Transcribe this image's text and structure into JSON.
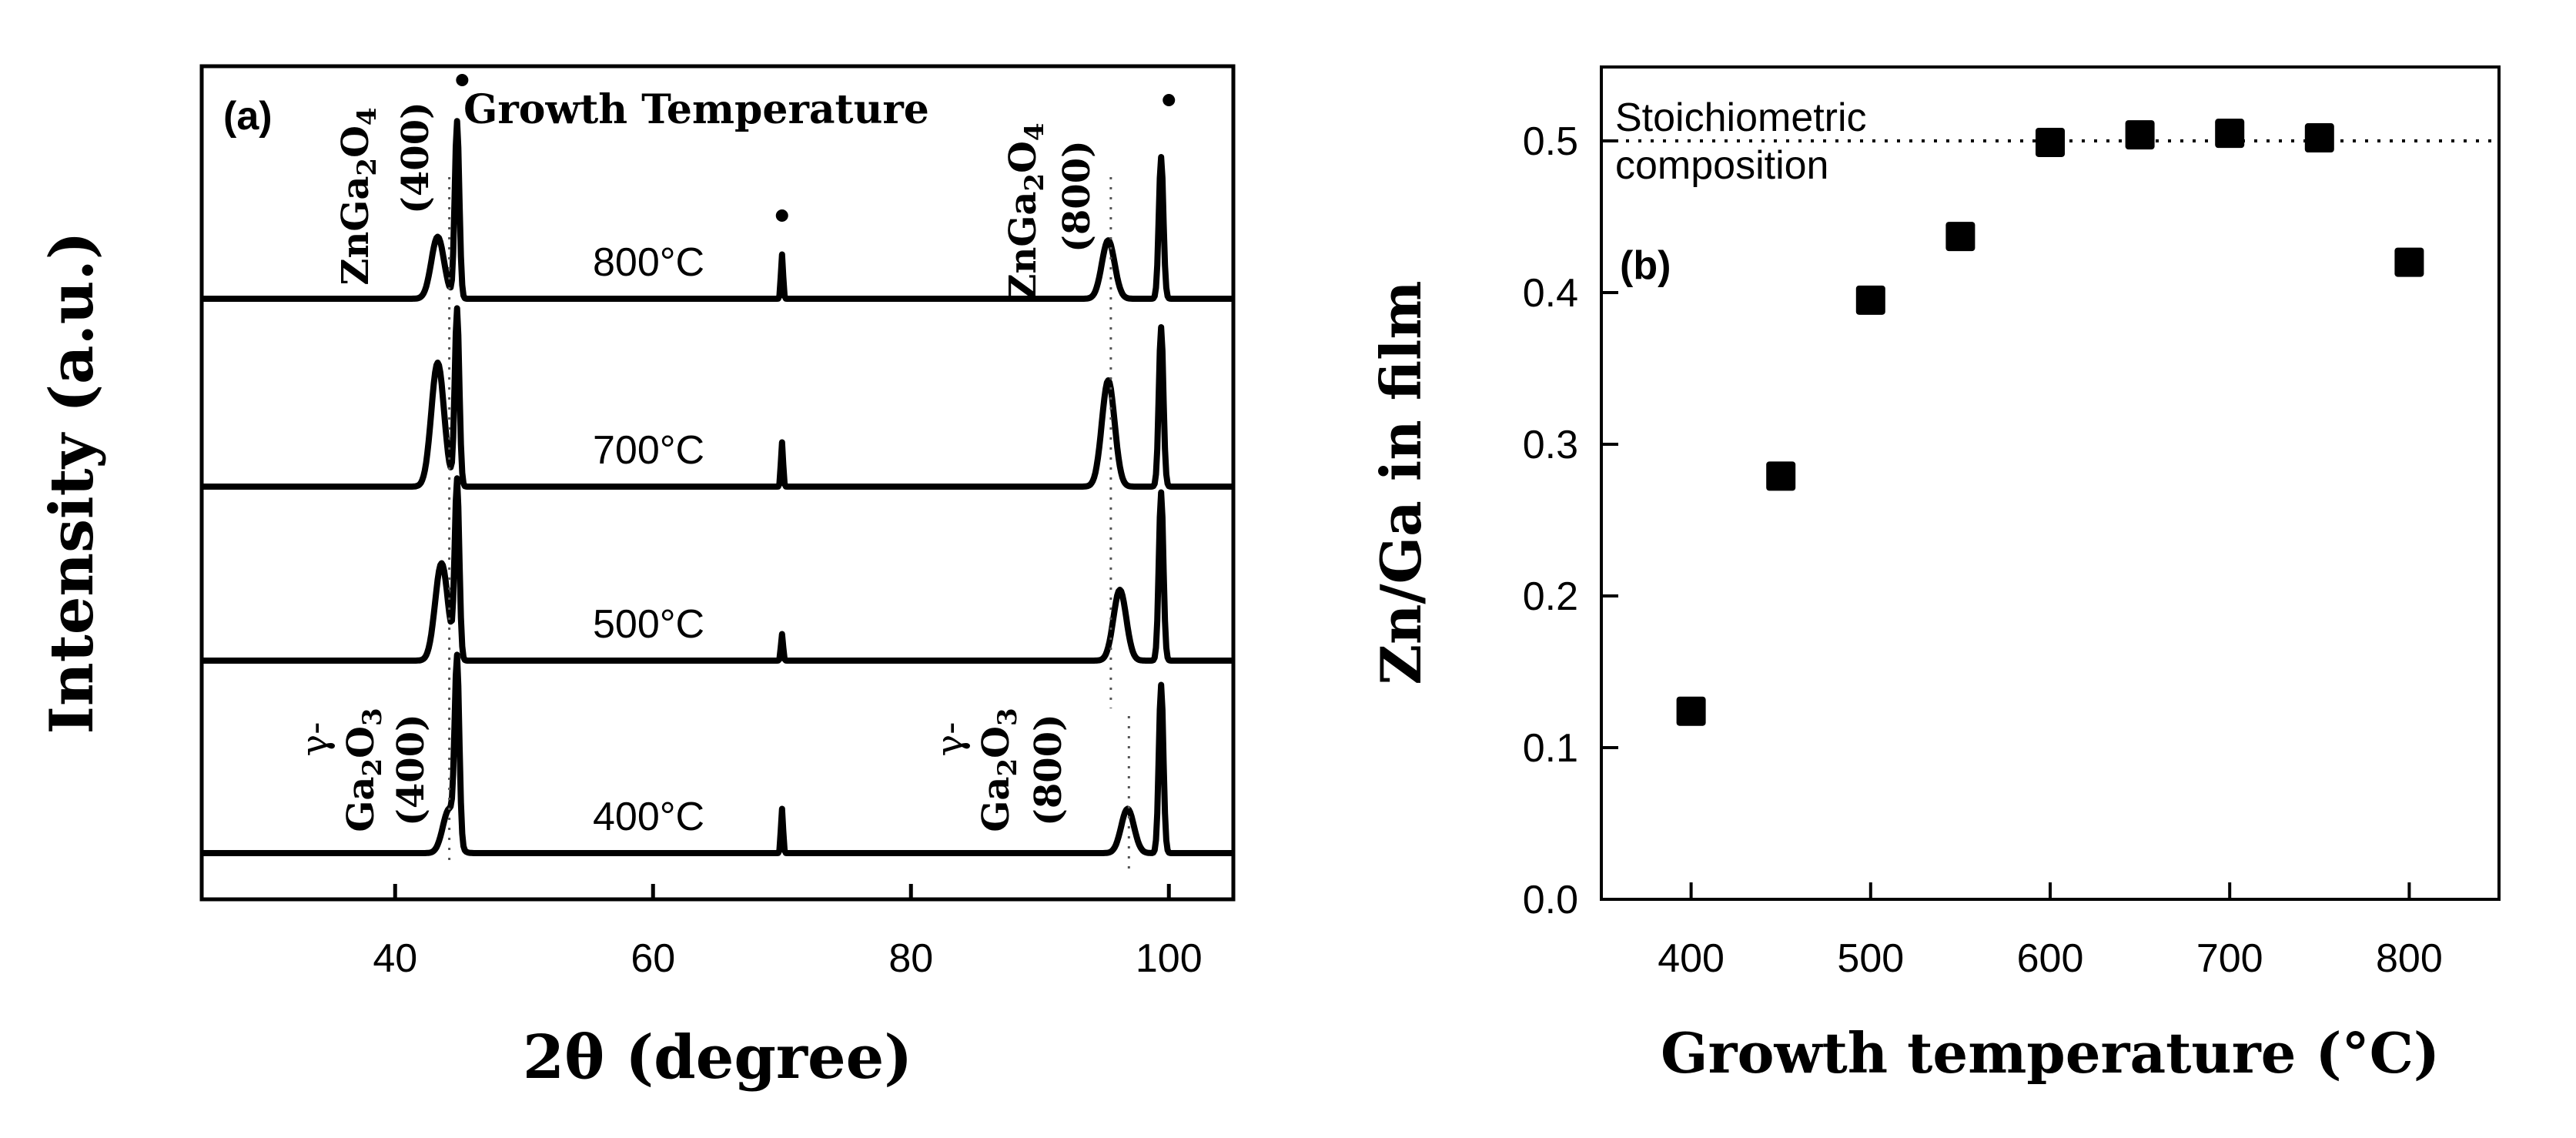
{
  "chart_data": [
    {
      "panel": "a",
      "type": "line",
      "panel_label": "(a)",
      "title": "Growth Temperature",
      "xlabel": "2θ (degree)",
      "ylabel": "Intensity (a.u.)",
      "xlim": [
        25,
        105
      ],
      "xticks": [
        40,
        60,
        80,
        100
      ],
      "grid": false,
      "series": [
        {
          "name": "800°C",
          "label": "800°C",
          "peaks": [
            {
              "x": 43.3,
              "rel": 0.35
            },
            {
              "x": 44.8,
              "rel": 1.0
            },
            {
              "x": 70.0,
              "rel": 0.25
            },
            {
              "x": 95.3,
              "rel": 0.33
            },
            {
              "x": 99.4,
              "rel": 0.8
            }
          ]
        },
        {
          "name": "700°C",
          "label": "700°C",
          "peaks": [
            {
              "x": 43.3,
              "rel": 0.7
            },
            {
              "x": 44.8,
              "rel": 1.0
            },
            {
              "x": 70.0,
              "rel": 0.25
            },
            {
              "x": 95.3,
              "rel": 0.6
            },
            {
              "x": 99.4,
              "rel": 0.9
            }
          ]
        },
        {
          "name": "500°C",
          "label": "500°C",
          "peaks": [
            {
              "x": 43.6,
              "rel": 0.55
            },
            {
              "x": 44.8,
              "rel": 1.0
            },
            {
              "x": 70.0,
              "rel": 0.15
            },
            {
              "x": 96.2,
              "rel": 0.4
            },
            {
              "x": 99.4,
              "rel": 0.95
            }
          ]
        },
        {
          "name": "400°C",
          "label": "400°C",
          "peaks": [
            {
              "x": 44.2,
              "rel": 0.25
            },
            {
              "x": 44.8,
              "rel": 1.0
            },
            {
              "x": 70.0,
              "rel": 0.25
            },
            {
              "x": 96.8,
              "rel": 0.25
            },
            {
              "x": 99.4,
              "rel": 0.95
            }
          ]
        }
      ],
      "reference_markers": [
        {
          "symbol": "•",
          "x": 45.2
        },
        {
          "symbol": "•",
          "x": 70.0
        },
        {
          "symbol": "•",
          "x": 100.0
        }
      ],
      "annotations": [
        {
          "text": "ZnGa2O4",
          "sub": "(400)",
          "x": 40.5
        },
        {
          "text": "ZnGa2O4",
          "sub": "(800)",
          "x": 92.0
        },
        {
          "text": "γ-Ga2O3",
          "sub": "(400)",
          "x": 38.5
        },
        {
          "text": "γ-Ga2O3",
          "sub": "(800)",
          "x": 90.5
        }
      ]
    },
    {
      "panel": "b",
      "type": "scatter",
      "panel_label": "(b)",
      "xlabel": "Growth temperature (°C)",
      "ylabel": "Zn/Ga in film",
      "xlim": [
        350,
        850
      ],
      "ylim": [
        0.0,
        0.55
      ],
      "xticks": [
        400,
        500,
        600,
        700,
        800
      ],
      "yticks": [
        0.0,
        0.1,
        0.2,
        0.3,
        0.4,
        0.5
      ],
      "grid": false,
      "reference_line": {
        "y": 0.5,
        "label_line1": "Stoichiometric",
        "label_line2": "composition"
      },
      "x": [
        400,
        450,
        500,
        550,
        600,
        650,
        700,
        750,
        800
      ],
      "y": [
        0.124,
        0.279,
        0.395,
        0.437,
        0.499,
        0.504,
        0.505,
        0.502,
        0.42
      ]
    }
  ]
}
